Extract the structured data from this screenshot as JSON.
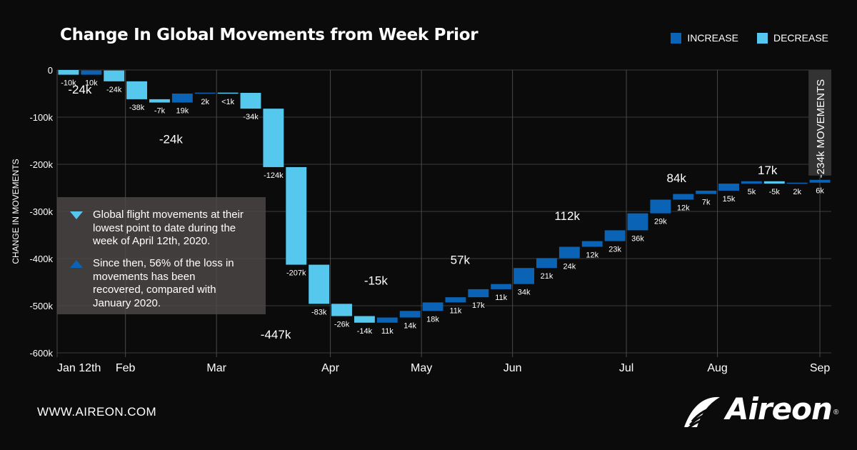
{
  "title": "Change In Global Movements from Week Prior",
  "legend": [
    {
      "label": "INCREASE",
      "color": "#0a63b5"
    },
    {
      "label": "DECREASE",
      "color": "#56c8ee"
    }
  ],
  "annotation": {
    "items": [
      {
        "icon": "down-triangle-icon",
        "text": "Global flight movements at their lowest point to date during the week of April 12th, 2020."
      },
      {
        "icon": "up-triangle-icon",
        "text": "Since then, 56% of the loss in movements has been recovered, compared with January 2020."
      }
    ]
  },
  "footer": {
    "url": "WWW.AIREON.COM",
    "logo": "Aireon",
    "logo_mark": "®"
  },
  "chart_data": {
    "type": "waterfall",
    "title": "Change In Global Movements from Week Prior",
    "ylabel": "CHANGE IN MOVEMENTS",
    "ylim": [
      -600000,
      0
    ],
    "yticks": [
      {
        "value": 0,
        "label": "0"
      },
      {
        "value": -100000,
        "label": "-100k"
      },
      {
        "value": -200000,
        "label": "-200k"
      },
      {
        "value": -300000,
        "label": "-300k"
      },
      {
        "value": -400000,
        "label": "-400k"
      },
      {
        "value": -500000,
        "label": "-500k"
      },
      {
        "value": -600000,
        "label": "-600k"
      }
    ],
    "xticks": [
      {
        "week": 0,
        "label": "Jan 12th"
      },
      {
        "week": 3,
        "label": "Feb"
      },
      {
        "week": 7,
        "label": "Mar"
      },
      {
        "week": 12,
        "label": "Apr"
      },
      {
        "week": 16,
        "label": "May"
      },
      {
        "week": 20,
        "label": "Jun"
      },
      {
        "week": 25,
        "label": "Jul"
      },
      {
        "week": 29,
        "label": "Aug"
      },
      {
        "week": 33.5,
        "label": "Sep"
      }
    ],
    "bars": [
      {
        "start": 0,
        "end": -10000,
        "label": "-10k"
      },
      {
        "start": -10000,
        "end": -1000,
        "label": "10k"
      },
      {
        "start": -1000,
        "end": -24000,
        "label": "-24k"
      },
      {
        "start": -24000,
        "end": -62000,
        "label": "-38k"
      },
      {
        "start": -62000,
        "end": -69000,
        "label": "-7k"
      },
      {
        "start": -69000,
        "end": -50000,
        "label": "19k"
      },
      {
        "start": -50000,
        "end": -48000,
        "label": "2k"
      },
      {
        "start": -48000,
        "end": -48500,
        "label": "<1k"
      },
      {
        "start": -48500,
        "end": -82000,
        "label": "-34k"
      },
      {
        "start": -82000,
        "end": -206000,
        "label": "-124k"
      },
      {
        "start": -206000,
        "end": -413000,
        "label": "-207k"
      },
      {
        "start": -413000,
        "end": -496000,
        "label": "-83k"
      },
      {
        "start": -496000,
        "end": -522000,
        "label": "-26k"
      },
      {
        "start": -522000,
        "end": -536000,
        "label": "-14k"
      },
      {
        "start": -536000,
        "end": -525000,
        "label": "11k"
      },
      {
        "start": -525000,
        "end": -511000,
        "label": "14k"
      },
      {
        "start": -511000,
        "end": -493000,
        "label": "18k"
      },
      {
        "start": -493000,
        "end": -482000,
        "label": "11k"
      },
      {
        "start": -482000,
        "end": -465000,
        "label": "17k"
      },
      {
        "start": -465000,
        "end": -454000,
        "label": "11k"
      },
      {
        "start": -454000,
        "end": -420000,
        "label": "34k"
      },
      {
        "start": -420000,
        "end": -399000,
        "label": "21k"
      },
      {
        "start": -399000,
        "end": -375000,
        "label": "24k"
      },
      {
        "start": -375000,
        "end": -363000,
        "label": "12k"
      },
      {
        "start": -363000,
        "end": -340000,
        "label": "23k"
      },
      {
        "start": -340000,
        "end": -304000,
        "label": "36k"
      },
      {
        "start": -304000,
        "end": -275000,
        "label": "29k"
      },
      {
        "start": -275000,
        "end": -263000,
        "label": "12k"
      },
      {
        "start": -263000,
        "end": -256000,
        "label": "7k"
      },
      {
        "start": -256000,
        "end": -241000,
        "label": "15k"
      },
      {
        "start": -241000,
        "end": -236000,
        "label": "5k"
      },
      {
        "start": -236000,
        "end": -241000,
        "label": "-5k"
      },
      {
        "start": -241000,
        "end": -239000,
        "label": "2k"
      },
      {
        "start": -239000,
        "end": -233000,
        "label": "6k"
      }
    ],
    "month_totals": [
      {
        "label": "-24k",
        "week": 1,
        "value": -50000
      },
      {
        "label": "-24k",
        "week": 5,
        "value": -155000
      },
      {
        "label": "-447k",
        "week": 9.6,
        "value": -570000
      },
      {
        "label": "-15k",
        "week": 14,
        "value": -455000
      },
      {
        "label": "57k",
        "week": 17.7,
        "value": -411000
      },
      {
        "label": "112k",
        "week": 22.4,
        "value": -318000
      },
      {
        "label": "84k",
        "week": 27.2,
        "value": -238000
      },
      {
        "label": "17k",
        "week": 31.2,
        "value": -221000
      }
    ],
    "final_total": {
      "label": "-234k MOVEMENTS"
    },
    "grid": true,
    "legend_position": "top-right"
  }
}
